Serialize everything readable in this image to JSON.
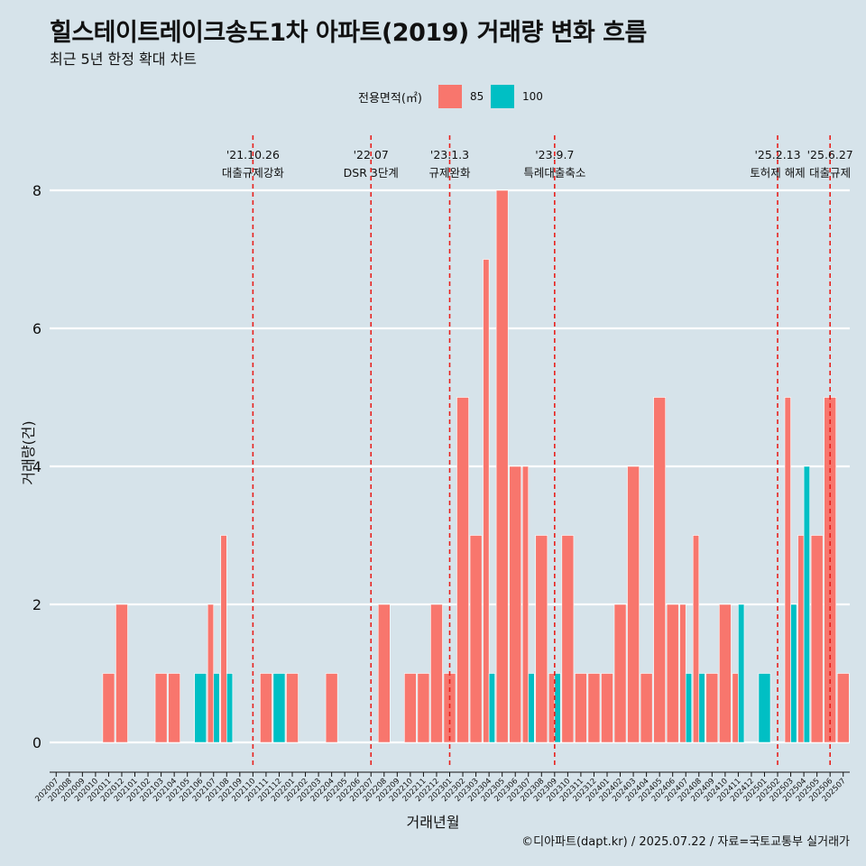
{
  "title": "힐스테이트레이크송도1차 아파트(2019) 거래량 변화 흐름",
  "subtitle": "최근 5년 한정 확대 차트",
  "caption": "©디아파트(dapt.kr) / 2025.07.22 / 자료=국토교통부 실거래가",
  "legend": {
    "title": "전용면적(㎡)",
    "items": [
      {
        "label": "85",
        "color": "#f8766d"
      },
      {
        "label": "100",
        "color": "#00bfc4"
      }
    ]
  },
  "chart_data": {
    "type": "bar",
    "xlabel": "거래년월",
    "ylabel": "거래량(건)",
    "ylim": [
      0,
      8
    ],
    "yticks": [
      0,
      2,
      4,
      6,
      8
    ],
    "grid": true,
    "legend_position": "top",
    "categories": [
      "202007",
      "202008",
      "202009",
      "202010",
      "202011",
      "202012",
      "202101",
      "202102",
      "202103",
      "202104",
      "202105",
      "202106",
      "202107",
      "202108",
      "202109",
      "202110",
      "202111",
      "202112",
      "202201",
      "202202",
      "202203",
      "202204",
      "202205",
      "202206",
      "202207",
      "202208",
      "202209",
      "202210",
      "202211",
      "202212",
      "202301",
      "202302",
      "202303",
      "202304",
      "202305",
      "202306",
      "202307",
      "202308",
      "202309",
      "202310",
      "202311",
      "202312",
      "202401",
      "202402",
      "202403",
      "202404",
      "202405",
      "202406",
      "202407",
      "202408",
      "202409",
      "202410",
      "202411",
      "202412",
      "202501",
      "202502",
      "202503",
      "202504",
      "202505",
      "202506",
      "202507"
    ],
    "series": [
      {
        "name": "85",
        "color": "#f8766d",
        "values": [
          0,
          0,
          0,
          0,
          1,
          2,
          0,
          0,
          1,
          1,
          0,
          0,
          2,
          3,
          0,
          0,
          1,
          0,
          1,
          0,
          0,
          1,
          0,
          0,
          0,
          2,
          0,
          1,
          1,
          2,
          1,
          5,
          3,
          7,
          8,
          4,
          4,
          3,
          1,
          3,
          1,
          1,
          1,
          2,
          4,
          1,
          5,
          2,
          2,
          3,
          1,
          2,
          1,
          0,
          0,
          0,
          5,
          3,
          3,
          5,
          1
        ]
      },
      {
        "name": "100",
        "color": "#00bfc4",
        "values": [
          0,
          0,
          0,
          0,
          0,
          0,
          0,
          0,
          0,
          0,
          0,
          1,
          1,
          1,
          0,
          0,
          0,
          1,
          0,
          0,
          0,
          0,
          0,
          0,
          0,
          0,
          0,
          0,
          0,
          0,
          0,
          0,
          0,
          1,
          0,
          0,
          1,
          0,
          1,
          0,
          0,
          0,
          0,
          0,
          0,
          0,
          0,
          0,
          1,
          1,
          0,
          0,
          2,
          0,
          1,
          0,
          2,
          4,
          0,
          0,
          0
        ]
      }
    ],
    "events": [
      {
        "date": "'21.10.26",
        "label": "대출규제강화",
        "category": "202110"
      },
      {
        "date": "'22.07",
        "label": "DSR 3단계",
        "category": "202207"
      },
      {
        "date": "'23.1.3",
        "label": "규제완화",
        "category": "202301"
      },
      {
        "date": "'23.9.7",
        "label": "특례대출축소",
        "category": "202309"
      },
      {
        "date": "'25.2.13",
        "label": "토허제 해제",
        "category": "202502"
      },
      {
        "date": "'25.6.27",
        "label": "대출규제",
        "category": "202506"
      }
    ]
  }
}
